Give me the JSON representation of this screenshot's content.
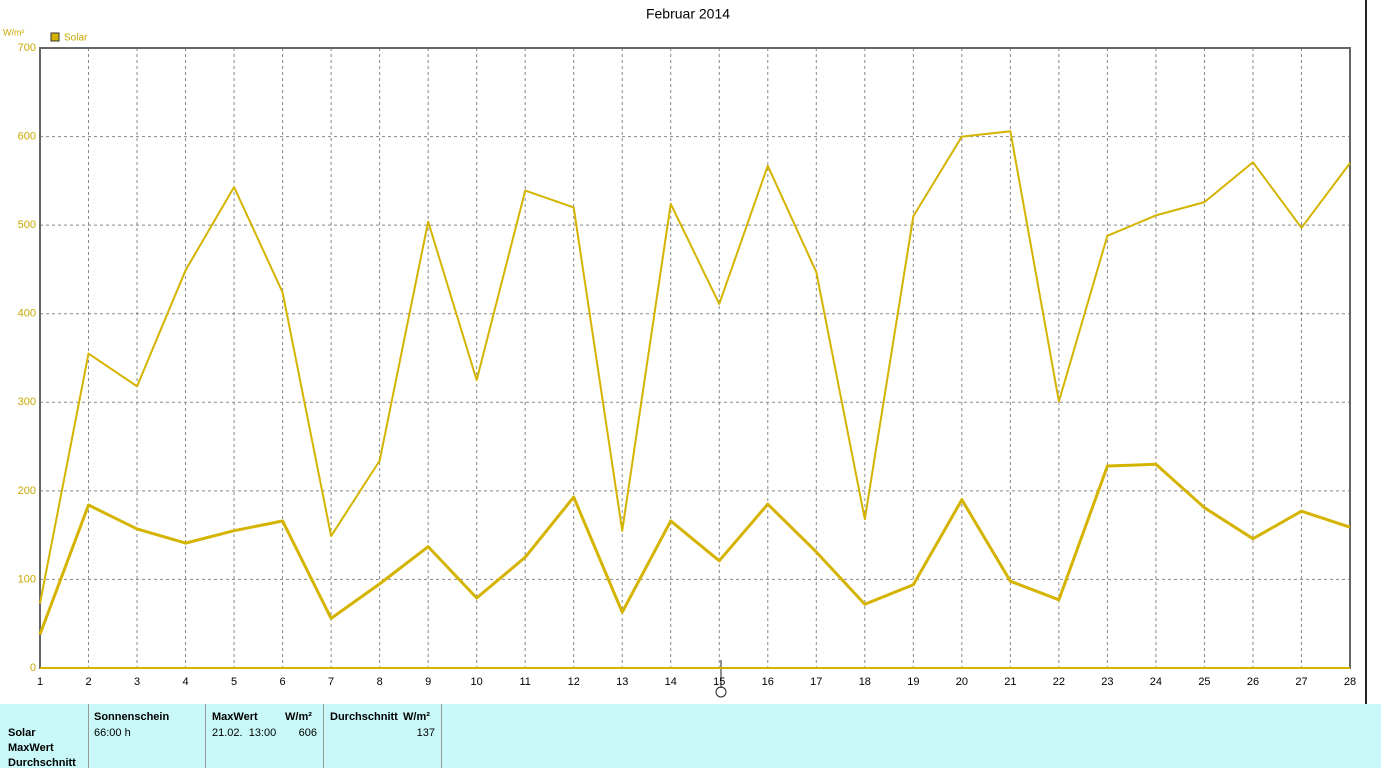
{
  "chart_data": {
    "type": "line",
    "title": "Februar 2014",
    "ylabel": "W/m²",
    "x": [
      1,
      2,
      3,
      4,
      5,
      6,
      7,
      8,
      9,
      10,
      11,
      12,
      13,
      14,
      15,
      16,
      17,
      18,
      19,
      20,
      21,
      22,
      23,
      24,
      25,
      26,
      27,
      28
    ],
    "xlim": [
      1,
      28
    ],
    "xticks": [
      1,
      2,
      3,
      4,
      5,
      6,
      7,
      8,
      9,
      10,
      11,
      12,
      13,
      14,
      15,
      16,
      17,
      18,
      19,
      20,
      21,
      22,
      23,
      24,
      25,
      26,
      27,
      28
    ],
    "ylim": [
      0,
      700
    ],
    "yticks": [
      0,
      100,
      200,
      300,
      400,
      500,
      600,
      700
    ],
    "grid": true,
    "legend": "top-left",
    "series": [
      {
        "name": "Solar",
        "color": "#d4b400",
        "values": [
          73,
          355,
          318,
          449,
          543,
          424,
          149,
          234,
          504,
          325,
          539,
          520,
          155,
          524,
          411,
          567,
          447,
          168,
          510,
          600,
          606,
          301,
          488,
          511,
          526,
          571,
          497,
          570
        ]
      },
      {
        "color": "#d4b400",
        "values": [
          38,
          184,
          157,
          141,
          155,
          166,
          56,
          95,
          137,
          79,
          125,
          193,
          63,
          166,
          121,
          185,
          131,
          72,
          94,
          190,
          98,
          77,
          228,
          230,
          181,
          146,
          177,
          159
        ]
      }
    ]
  },
  "summary_table": {
    "row_labels": [
      "Solar",
      "MaxWert",
      "Durchschnitt"
    ],
    "headers": [
      "Sonnenschein",
      "MaxWert",
      "W/m²",
      "Durchschnitt",
      "W/m²"
    ],
    "rows": [
      [
        "66:00 h",
        "21.02.  13:00",
        "606",
        "137"
      ]
    ]
  }
}
